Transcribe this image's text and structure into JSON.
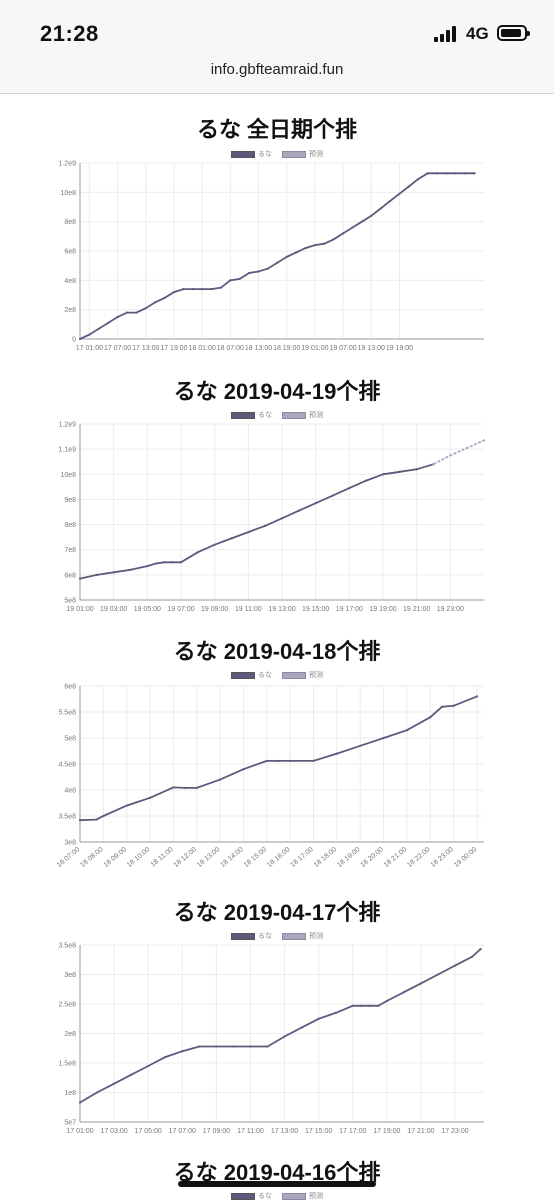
{
  "status": {
    "time": "21:28",
    "network": "4G"
  },
  "browser": {
    "url": "info.gbfteamraid.fun"
  },
  "colors": {
    "actual": "#5c5b7c",
    "predicted": "#a9a8bf",
    "grid": "#ececec",
    "axis": "#999999"
  },
  "icons": [
    "signal-icon",
    "battery-icon"
  ],
  "chart_data": [
    {
      "type": "line",
      "title": "るな 全日期个排",
      "legend": [
        "るな",
        "预测"
      ],
      "ylim": [
        0,
        1200000000.0
      ],
      "y_ticks": [
        "0",
        "2e8",
        "4e8",
        "6e8",
        "8e8",
        "10e8",
        "1.2e9"
      ],
      "x_ticks": [
        "17 01:00",
        "17 07:00",
        "17 13:00",
        "17 19:00",
        "18 01:00",
        "18 07:00",
        "18 13:00",
        "18 19:00",
        "19 01:00",
        "19 07:00",
        "19 13:00",
        "19 19:00"
      ],
      "series": [
        {
          "name": "るな",
          "x": [
            0,
            2,
            4,
            6,
            8,
            10,
            12,
            14,
            16,
            18,
            20,
            22,
            24,
            26,
            28,
            30,
            32,
            34,
            36,
            38,
            40,
            42,
            44,
            46,
            48,
            50,
            52,
            54,
            56,
            58,
            60,
            62,
            64,
            66,
            68,
            70,
            72,
            74,
            76,
            78,
            80,
            82,
            84
          ],
          "values": [
            0,
            30000000.0,
            70000000.0,
            110000000.0,
            150000000.0,
            180000000.0,
            180000000.0,
            210000000.0,
            250000000.0,
            280000000.0,
            320000000.0,
            340000000.0,
            340000000.0,
            340000000.0,
            340000000.0,
            350000000.0,
            400000000.0,
            410000000.0,
            450000000.0,
            460000000.0,
            480000000.0,
            520000000.0,
            560000000.0,
            590000000.0,
            620000000.0,
            640000000.0,
            650000000.0,
            680000000.0,
            720000000.0,
            760000000.0,
            800000000.0,
            840000000.0,
            890000000.0,
            940000000.0,
            990000000.0,
            1040000000.0,
            1090000000.0,
            1130000000.0,
            1130000000.0,
            1130000000.0,
            1130000000.0,
            1130000000.0,
            1130000000.0
          ]
        }
      ]
    },
    {
      "type": "line",
      "title": "るな 2019-04-19个排",
      "legend": [
        "るな",
        "预测"
      ],
      "ylim": [
        500000000.0,
        1200000000.0
      ],
      "y_ticks": [
        "5e8",
        "6e8",
        "7e8",
        "8e8",
        "9e8",
        "10e8",
        "1.1e9",
        "1.2e9"
      ],
      "x_ticks": [
        "19 01:00",
        "19 03:00",
        "19 05:00",
        "19 07:00",
        "19 09:00",
        "19 11:00",
        "19 13:00",
        "19 15:00",
        "19 17:00",
        "19 19:00",
        "19 21:00",
        "19 23:00"
      ],
      "series": [
        {
          "name": "るな",
          "x": [
            0,
            1,
            2,
            3,
            4,
            4.5,
            5,
            5.5,
            6,
            7,
            8,
            9,
            10,
            11,
            12,
            13,
            14,
            15,
            16,
            17,
            18,
            19,
            20,
            21
          ],
          "values": [
            585000000.0,
            600000000.0,
            610000000.0,
            620000000.0,
            635000000.0,
            645000000.0,
            650000000.0,
            650000000.0,
            650000000.0,
            690000000.0,
            720000000.0,
            745000000.0,
            770000000.0,
            795000000.0,
            825000000.0,
            855000000.0,
            885000000.0,
            915000000.0,
            945000000.0,
            975000000.0,
            1000000000.0,
            1010000000.0,
            1020000000.0,
            1040000000.0
          ]
        },
        {
          "name": "预测",
          "x": [
            21,
            22,
            23,
            24
          ],
          "values": [
            1040000000.0,
            1075000000.0,
            1105000000.0,
            1135000000.0
          ]
        }
      ]
    },
    {
      "type": "line",
      "title": "るな 2019-04-18个排",
      "legend": [
        "るな",
        "预测"
      ],
      "ylim": [
        300000000.0,
        600000000.0
      ],
      "y_ticks": [
        "3e8",
        "3.5e8",
        "4e8",
        "4.5e8",
        "5e8",
        "5.5e8",
        "6e8"
      ],
      "x_ticks": [
        "18 07:00",
        "18 08:00",
        "18 09:00",
        "18 10:00",
        "18 11:00",
        "18 12:00",
        "18 13:00",
        "18 14:00",
        "18 15:00",
        "18 16:00",
        "18 17:00",
        "18 18:00",
        "18 19:00",
        "18 20:00",
        "18 21:00",
        "18 22:00",
        "18 23:00",
        "19 00:00"
      ],
      "series": [
        {
          "name": "るな",
          "x": [
            0,
            0.7,
            1.0,
            2.0,
            3.0,
            4.0,
            4.5,
            5.0,
            6.0,
            7.0,
            8.0,
            8.5,
            9.0,
            10.0,
            11.0,
            12.0,
            13.0,
            14.0,
            15.0,
            15.5,
            16.0,
            17.0
          ],
          "values": [
            342000000.0,
            343000000.0,
            350000000.0,
            370000000.0,
            385000000.0,
            405000000.0,
            404000000.0,
            404000000.0,
            420000000.0,
            440000000.0,
            456000000.0,
            456000000.0,
            456000000.0,
            456000000.0,
            470000000.0,
            485000000.0,
            500000000.0,
            515000000.0,
            540000000.0,
            560000000.0,
            562000000.0,
            580000000.0
          ]
        }
      ]
    },
    {
      "type": "line",
      "title": "るな 2019-04-17个排",
      "legend": [
        "るな",
        "预测"
      ],
      "ylim": [
        50000000.0,
        350000000.0
      ],
      "y_ticks": [
        "5e7",
        "1e8",
        "1.5e8",
        "2e8",
        "2.5e8",
        "3e8",
        "3.5e8"
      ],
      "x_ticks": [
        "17 01:00",
        "17 03:00",
        "17 05:00",
        "17 07:00",
        "17 09:00",
        "17 11:00",
        "17 13:00",
        "17 15:00",
        "17 17:00",
        "17 19:00",
        "17 21:00",
        "17 23:00"
      ],
      "series": [
        {
          "name": "るな",
          "x": [
            0,
            1,
            2,
            3,
            4,
            5,
            6,
            7,
            8,
            9,
            10,
            11,
            12,
            13,
            14,
            15,
            16,
            16.5,
            17,
            17.5,
            18,
            19,
            20,
            21,
            22,
            23,
            23.5
          ],
          "values": [
            83000000.0,
            100000000.0,
            115000000.0,
            130000000.0,
            145000000.0,
            160000000.0,
            170000000.0,
            178000000.0,
            178000000.0,
            178000000.0,
            178000000.0,
            178000000.0,
            195000000.0,
            210000000.0,
            225000000.0,
            235000000.0,
            247000000.0,
            247000000.0,
            247000000.0,
            247000000.0,
            255000000.0,
            270000000.0,
            285000000.0,
            300000000.0,
            315000000.0,
            330000000.0,
            343000000.0
          ]
        }
      ]
    },
    {
      "type": "line",
      "title": "るな 2019-04-16个排",
      "legend": [
        "るな",
        "预测"
      ]
    }
  ]
}
